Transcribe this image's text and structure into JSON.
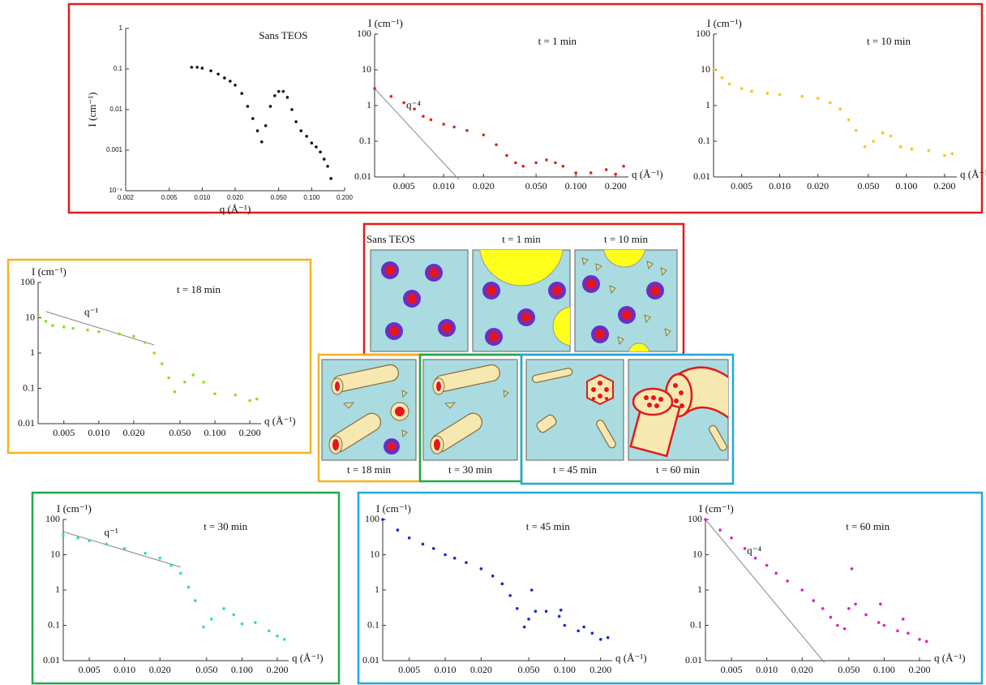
{
  "chart_data": [
    {
      "type": "scatter",
      "title": "Sans TEOS",
      "x_label": "q (Å⁻¹)",
      "y_label": "I (cm⁻¹)",
      "xlog": true,
      "ylog": true,
      "color": "#111111",
      "xlim": [
        0.002,
        0.2
      ],
      "ylim": [
        0.0001,
        1
      ],
      "xticks": [
        0.002,
        0.005,
        {
          "value": 0.01,
          "label": "0.010"
        },
        {
          "value": 0.02,
          "label": "0.020"
        },
        {
          "value": 0.05,
          "label": "0.050"
        },
        {
          "value": 0.1,
          "label": "0.100"
        },
        {
          "value": 0.2,
          "label": "0.200"
        }
      ],
      "yticks": [
        1,
        0.1,
        0.01,
        0.001,
        {
          "value": 0.0001,
          "label": "10⁻⁴"
        }
      ],
      "x": [
        0.008,
        0.009,
        0.01,
        0.012,
        0.014,
        0.016,
        0.018,
        0.02,
        0.023,
        0.026,
        0.029,
        0.032,
        0.035,
        0.038,
        0.042,
        0.046,
        0.05,
        0.055,
        0.06,
        0.066,
        0.072,
        0.08,
        0.09,
        0.1,
        0.11,
        0.12,
        0.13,
        0.14,
        0.15
      ],
      "values": [
        0.11,
        0.11,
        0.105,
        0.09,
        0.075,
        0.06,
        0.05,
        0.04,
        0.025,
        0.012,
        0.006,
        0.003,
        0.0016,
        0.004,
        0.012,
        0.022,
        0.028,
        0.028,
        0.02,
        0.01,
        0.005,
        0.003,
        0.0022,
        0.0015,
        0.0012,
        0.0009,
        0.0006,
        0.0004,
        0.0002
      ]
    },
    {
      "type": "scatter",
      "title": "t = 1 min",
      "x_label": "q (Å⁻¹)",
      "y_label": "I (cm⁻¹)",
      "xlog": true,
      "ylog": true,
      "color": "#e0201c",
      "xlim": [
        0.003,
        0.25
      ],
      "ylim": [
        0.01,
        100
      ],
      "xticks": [
        0.005,
        {
          "value": 0.01,
          "label": "0.010"
        },
        {
          "value": 0.02,
          "label": "0.020"
        },
        {
          "value": 0.05,
          "label": "0.050"
        },
        {
          "value": 0.1,
          "label": "0.100"
        },
        {
          "value": 0.2,
          "label": "0.200"
        }
      ],
      "yticks": [
        100,
        10,
        1,
        0.1,
        0.01
      ],
      "x": [
        0.003,
        0.004,
        0.005,
        0.006,
        0.007,
        0.008,
        0.01,
        0.012,
        0.015,
        0.02,
        0.025,
        0.03,
        0.035,
        0.04,
        0.05,
        0.06,
        0.07,
        0.08,
        0.1,
        0.13,
        0.17,
        0.2,
        0.23
      ],
      "values": [
        3,
        1.8,
        1.2,
        0.8,
        0.5,
        0.4,
        0.3,
        0.25,
        0.2,
        0.15,
        0.08,
        0.04,
        0.025,
        0.02,
        0.025,
        0.03,
        0.025,
        0.02,
        0.013,
        0.013,
        0.016,
        0.012,
        0.02
      ],
      "guides": [
        {
          "label": "q⁻⁴",
          "x": [
            0.003,
            0.013
          ],
          "values": [
            3,
            0.0085
          ]
        }
      ]
    },
    {
      "type": "scatter",
      "title": "t = 10 min",
      "x_label": "q (Å⁻¹)",
      "y_label": "I (cm⁻¹)",
      "xlog": true,
      "ylog": true,
      "color": "#f2c811",
      "xlim": [
        0.003,
        0.25
      ],
      "ylim": [
        0.01,
        100
      ],
      "xticks": [
        0.005,
        {
          "value": 0.01,
          "label": "0.010"
        },
        {
          "value": 0.02,
          "label": "0.020"
        },
        {
          "value": 0.05,
          "label": "0.050"
        },
        {
          "value": 0.1,
          "label": "0.100"
        },
        {
          "value": 0.2,
          "label": "0.200"
        }
      ],
      "yticks": [
        100,
        10,
        1,
        0.1,
        0.01
      ],
      "x": [
        0.003,
        0.0035,
        0.004,
        0.005,
        0.006,
        0.008,
        0.01,
        0.015,
        0.02,
        0.025,
        0.03,
        0.035,
        0.04,
        0.047,
        0.055,
        0.065,
        0.075,
        0.09,
        0.11,
        0.15,
        0.2,
        0.23
      ],
      "values": [
        10,
        6,
        4,
        3,
        2.5,
        2.2,
        2,
        1.8,
        1.6,
        1.2,
        0.8,
        0.4,
        0.2,
        0.07,
        0.1,
        0.17,
        0.14,
        0.07,
        0.06,
        0.055,
        0.04,
        0.045
      ]
    },
    {
      "type": "scatter",
      "title": "t = 18 min",
      "x_label": "q (Å⁻¹)",
      "y_label": "I (cm⁻¹)",
      "xlog": true,
      "ylog": true,
      "color": "#8ee01e",
      "xlim": [
        0.003,
        0.25
      ],
      "ylim": [
        0.01,
        100
      ],
      "xticks": [
        0.005,
        {
          "value": 0.01,
          "label": "0.010"
        },
        {
          "value": 0.02,
          "label": "0.020"
        },
        {
          "value": 0.05,
          "label": "0.050"
        },
        {
          "value": 0.1,
          "label": "0.100"
        },
        {
          "value": 0.2,
          "label": "0.200"
        }
      ],
      "yticks": [
        100,
        10,
        1,
        0.1,
        0.01
      ],
      "x": [
        0.003,
        0.0035,
        0.004,
        0.005,
        0.006,
        0.008,
        0.01,
        0.015,
        0.02,
        0.025,
        0.03,
        0.035,
        0.04,
        0.045,
        0.055,
        0.065,
        0.08,
        0.1,
        0.15,
        0.2,
        0.23
      ],
      "values": [
        12,
        8,
        6,
        5.5,
        5,
        4.5,
        4,
        3.5,
        3,
        2,
        1,
        0.5,
        0.2,
        0.08,
        0.15,
        0.24,
        0.15,
        0.07,
        0.065,
        0.045,
        0.05
      ],
      "guides": [
        {
          "label": "q⁻¹",
          "x": [
            0.0035,
            0.03
          ],
          "values": [
            15,
            1.7
          ]
        }
      ]
    },
    {
      "type": "scatter",
      "title": "t = 30 min",
      "x_label": "q (Å⁻¹)",
      "y_label": "I (cm⁻¹)",
      "xlog": true,
      "ylog": true,
      "color": "#2ee0a6",
      "xlim": [
        0.003,
        0.25
      ],
      "ylim": [
        0.01,
        100
      ],
      "xticks": [
        0.005,
        {
          "value": 0.01,
          "label": "0.010"
        },
        {
          "value": 0.02,
          "label": "0.020"
        },
        {
          "value": 0.05,
          "label": "0.050"
        },
        {
          "value": 0.1,
          "label": "0.100"
        },
        {
          "value": 0.2,
          "label": "0.200"
        }
      ],
      "yticks": [
        100,
        10,
        1,
        0.1,
        0.01
      ],
      "x": [
        0.003,
        0.004,
        0.005,
        0.007,
        0.01,
        0.015,
        0.02,
        0.025,
        0.03,
        0.035,
        0.04,
        0.047,
        0.055,
        0.07,
        0.085,
        0.1,
        0.13,
        0.17,
        0.2,
        0.23
      ],
      "values": [
        35,
        30,
        25,
        20,
        15,
        11,
        8,
        5,
        3,
        1.2,
        0.5,
        0.09,
        0.15,
        0.3,
        0.2,
        0.11,
        0.12,
        0.07,
        0.05,
        0.04
      ],
      "guides": [
        {
          "label": "q⁻¹",
          "x": [
            0.003,
            0.03
          ],
          "values": [
            45,
            4.5
          ]
        }
      ]
    },
    {
      "type": "scatter",
      "title": "t = 45 min",
      "x_label": "q (Å⁻¹)",
      "y_label": "I (cm⁻¹)",
      "xlog": true,
      "ylog": true,
      "color": "#1428d0",
      "xlim": [
        0.003,
        0.25
      ],
      "ylim": [
        0.01,
        100
      ],
      "xticks": [
        0.005,
        {
          "value": 0.01,
          "label": "0.010"
        },
        {
          "value": 0.02,
          "label": "0.020"
        },
        {
          "value": 0.05,
          "label": "0.050"
        },
        {
          "value": 0.1,
          "label": "0.100"
        },
        {
          "value": 0.2,
          "label": "0.200"
        }
      ],
      "yticks": [
        100,
        10,
        1,
        0.1,
        0.01
      ],
      "x": [
        0.003,
        0.004,
        0.005,
        0.0065,
        0.008,
        0.01,
        0.012,
        0.015,
        0.02,
        0.025,
        0.03,
        0.035,
        0.04,
        0.046,
        0.05,
        0.053,
        0.057,
        0.07,
        0.09,
        0.093,
        0.1,
        0.13,
        0.145,
        0.17,
        0.2,
        0.23
      ],
      "values": [
        100,
        50,
        30,
        20,
        15,
        10,
        8,
        6,
        4,
        2.5,
        1.5,
        0.7,
        0.3,
        0.09,
        0.15,
        1,
        0.25,
        0.25,
        0.18,
        0.27,
        0.1,
        0.07,
        0.09,
        0.06,
        0.04,
        0.045
      ]
    },
    {
      "type": "scatter",
      "title": "t = 60 min",
      "x_label": "q (Å⁻¹)",
      "y_label": "I (cm⁻¹)",
      "xlog": true,
      "ylog": true,
      "color": "#e020b0",
      "xlim": [
        0.003,
        0.25
      ],
      "ylim": [
        0.01,
        100
      ],
      "xticks": [
        0.005,
        {
          "value": 0.01,
          "label": "0.010"
        },
        {
          "value": 0.02,
          "label": "0.020"
        },
        {
          "value": 0.05,
          "label": "0.050"
        },
        {
          "value": 0.1,
          "label": "0.100"
        },
        {
          "value": 0.2,
          "label": "0.200"
        }
      ],
      "yticks": [
        100,
        10,
        1,
        0.1,
        0.01
      ],
      "x": [
        0.003,
        0.004,
        0.005,
        0.0065,
        0.008,
        0.01,
        0.012,
        0.015,
        0.02,
        0.025,
        0.03,
        0.035,
        0.04,
        0.046,
        0.05,
        0.053,
        0.057,
        0.07,
        0.09,
        0.093,
        0.1,
        0.13,
        0.145,
        0.16,
        0.2,
        0.23
      ],
      "values": [
        100,
        50,
        30,
        15,
        8,
        5,
        3,
        1.8,
        1,
        0.5,
        0.3,
        0.17,
        0.1,
        0.08,
        0.3,
        4,
        0.4,
        0.2,
        0.12,
        0.4,
        0.1,
        0.07,
        0.15,
        0.06,
        0.04,
        0.035
      ],
      "guides": [
        {
          "label": "q⁻⁴",
          "x": [
            0.003,
            0.031
          ],
          "values": [
            100,
            0.0088
          ]
        }
      ]
    }
  ],
  "diagram": {
    "panels": [
      "Sans TEOS",
      "t = 1 min",
      "t = 10 min",
      "t = 18 min",
      "t = 30 min",
      "t = 45 min",
      "t = 60 min"
    ]
  }
}
